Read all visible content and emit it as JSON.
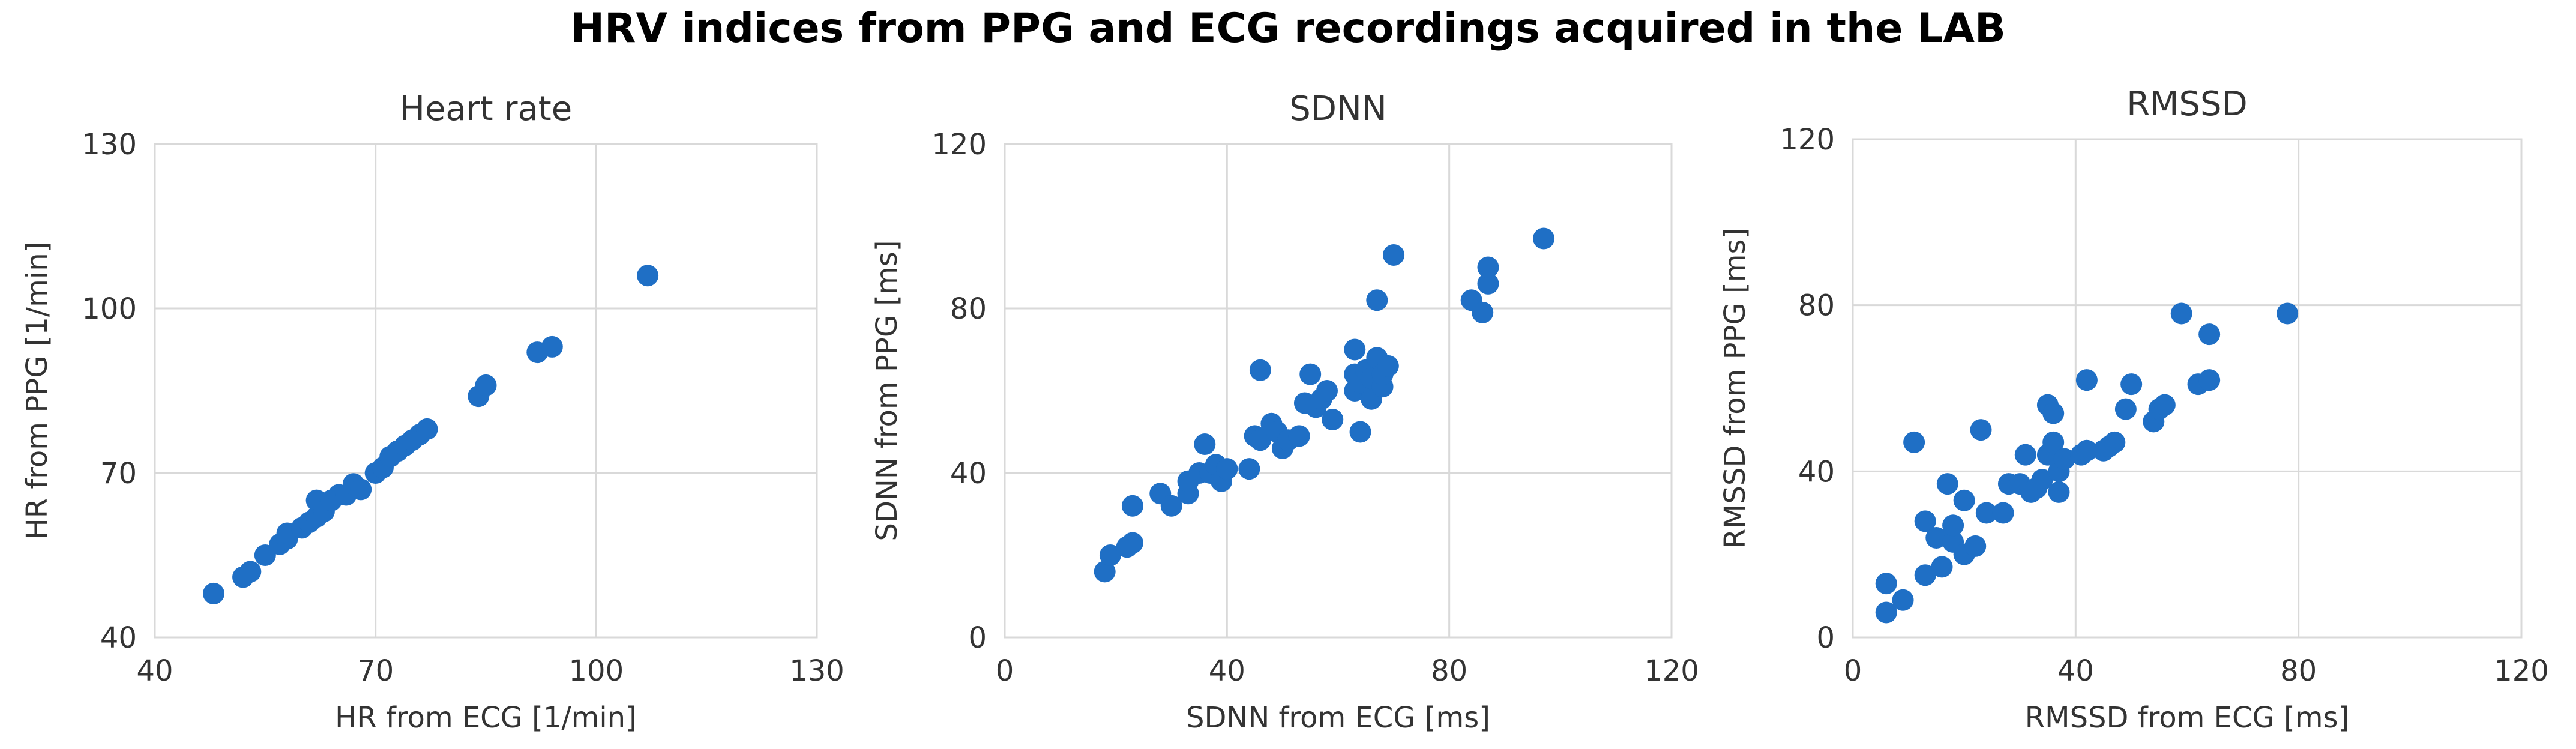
{
  "title": "HRV indices from PPG and ECG recordings acquired in the LAB",
  "colors": {
    "marker": "#1f6fc5",
    "grid": "#d9d9d9",
    "text": "#333333"
  },
  "chart_data": [
    {
      "type": "scatter",
      "title": "Heart rate",
      "xlabel": "HR from ECG [1/min]",
      "ylabel": "HR from PPG [1/min]",
      "xlim": [
        40,
        130
      ],
      "ylim": [
        40,
        130
      ],
      "xticks": [
        40,
        70,
        100,
        130
      ],
      "yticks": [
        40,
        70,
        100,
        130
      ],
      "grid": true,
      "series": [
        {
          "name": "Heart rate",
          "points": [
            [
              48,
              48
            ],
            [
              52,
              51
            ],
            [
              53,
              52
            ],
            [
              55,
              55
            ],
            [
              57,
              57
            ],
            [
              58,
              58
            ],
            [
              58,
              59
            ],
            [
              60,
              60
            ],
            [
              61,
              61
            ],
            [
              62,
              62
            ],
            [
              62,
              65
            ],
            [
              63,
              63
            ],
            [
              64,
              65
            ],
            [
              65,
              66
            ],
            [
              66,
              66
            ],
            [
              67,
              68
            ],
            [
              68,
              67
            ],
            [
              70,
              70
            ],
            [
              71,
              71
            ],
            [
              72,
              73
            ],
            [
              73,
              74
            ],
            [
              74,
              75
            ],
            [
              75,
              76
            ],
            [
              76,
              77
            ],
            [
              77,
              78
            ],
            [
              84,
              84
            ],
            [
              85,
              86
            ],
            [
              92,
              92
            ],
            [
              94,
              93
            ],
            [
              107,
              106
            ]
          ]
        }
      ]
    },
    {
      "type": "scatter",
      "title": "SDNN",
      "xlabel": "SDNN from ECG [ms]",
      "ylabel": "SDNN from PPG [ms]",
      "xlim": [
        0,
        120
      ],
      "ylim": [
        0,
        120
      ],
      "xticks": [
        0,
        40,
        80,
        120
      ],
      "yticks": [
        0,
        40,
        80,
        120
      ],
      "grid": true,
      "series": [
        {
          "name": "SDNN",
          "points": [
            [
              18,
              16
            ],
            [
              19,
              20
            ],
            [
              22,
              22
            ],
            [
              23,
              23
            ],
            [
              23,
              32
            ],
            [
              28,
              35
            ],
            [
              30,
              32
            ],
            [
              33,
              35
            ],
            [
              33,
              38
            ],
            [
              35,
              40
            ],
            [
              36,
              47
            ],
            [
              37,
              40
            ],
            [
              38,
              42
            ],
            [
              39,
              38
            ],
            [
              40,
              41
            ],
            [
              44,
              41
            ],
            [
              45,
              49
            ],
            [
              46,
              48
            ],
            [
              46,
              65
            ],
            [
              48,
              52
            ],
            [
              49,
              50
            ],
            [
              50,
              46
            ],
            [
              51,
              48
            ],
            [
              53,
              49
            ],
            [
              54,
              57
            ],
            [
              55,
              64
            ],
            [
              56,
              56
            ],
            [
              57,
              58
            ],
            [
              58,
              60
            ],
            [
              59,
              53
            ],
            [
              63,
              60
            ],
            [
              63,
              64
            ],
            [
              63,
              70
            ],
            [
              64,
              50
            ],
            [
              64,
              62
            ],
            [
              65,
              65
            ],
            [
              66,
              58
            ],
            [
              66,
              63
            ],
            [
              67,
              68
            ],
            [
              67,
              82
            ],
            [
              68,
              61
            ],
            [
              68,
              64
            ],
            [
              69,
              66
            ],
            [
              70,
              93
            ],
            [
              84,
              82
            ],
            [
              86,
              79
            ],
            [
              87,
              86
            ],
            [
              87,
              90
            ],
            [
              97,
              97
            ]
          ]
        }
      ]
    },
    {
      "type": "scatter",
      "title": "RMSSD",
      "xlabel": "RMSSD from ECG [ms]",
      "ylabel": "RMSSD from PPG [ms]",
      "xlim": [
        0,
        120
      ],
      "ylim": [
        0,
        120
      ],
      "xticks": [
        0,
        40,
        80,
        120
      ],
      "yticks": [
        0,
        40,
        80,
        120
      ],
      "grid": true,
      "series": [
        {
          "name": "RMSSD",
          "points": [
            [
              6,
              6
            ],
            [
              6,
              13
            ],
            [
              9,
              9
            ],
            [
              11,
              47
            ],
            [
              13,
              15
            ],
            [
              13,
              28
            ],
            [
              15,
              24
            ],
            [
              16,
              17
            ],
            [
              17,
              37
            ],
            [
              18,
              23
            ],
            [
              18,
              27
            ],
            [
              20,
              20
            ],
            [
              20,
              33
            ],
            [
              22,
              22
            ],
            [
              23,
              50
            ],
            [
              24,
              30
            ],
            [
              27,
              30
            ],
            [
              28,
              37
            ],
            [
              30,
              37
            ],
            [
              31,
              44
            ],
            [
              32,
              35
            ],
            [
              33,
              36
            ],
            [
              34,
              38
            ],
            [
              35,
              44
            ],
            [
              35,
              56
            ],
            [
              36,
              54
            ],
            [
              36,
              47
            ],
            [
              37,
              35
            ],
            [
              37,
              40
            ],
            [
              38,
              43
            ],
            [
              41,
              44
            ],
            [
              42,
              45
            ],
            [
              42,
              62
            ],
            [
              45,
              45
            ],
            [
              46,
              46
            ],
            [
              47,
              47
            ],
            [
              49,
              55
            ],
            [
              50,
              61
            ],
            [
              54,
              52
            ],
            [
              55,
              55
            ],
            [
              56,
              56
            ],
            [
              59,
              78
            ],
            [
              62,
              61
            ],
            [
              64,
              62
            ],
            [
              64,
              73
            ],
            [
              78,
              78
            ]
          ]
        }
      ]
    }
  ]
}
